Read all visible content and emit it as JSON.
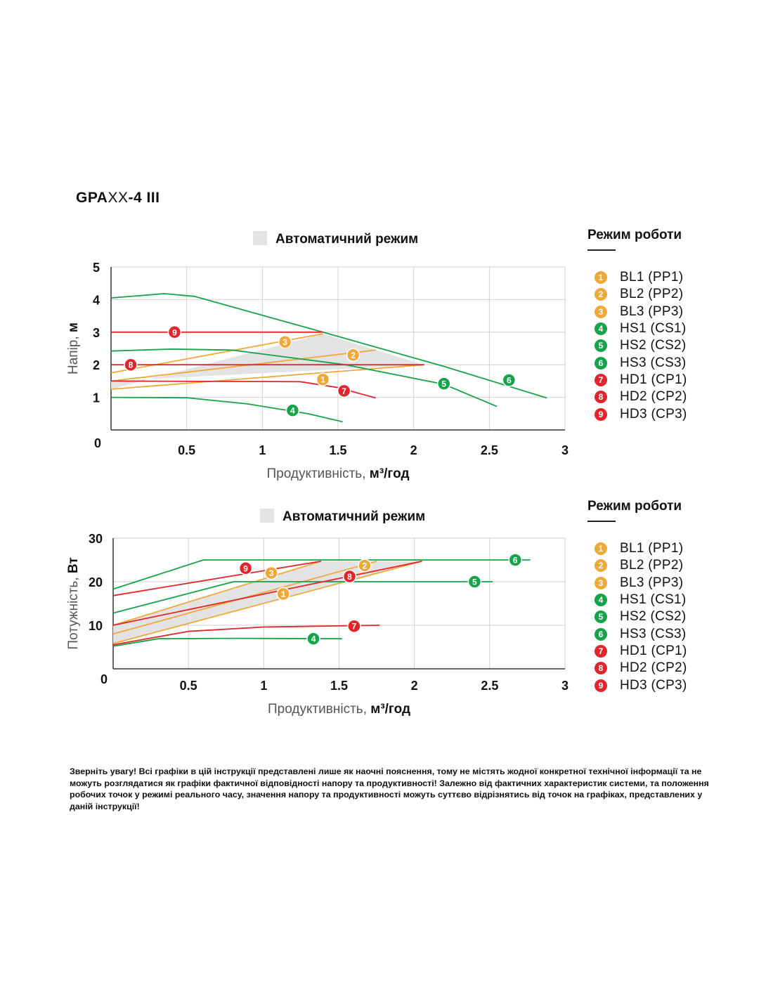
{
  "title": {
    "bold": "GPA",
    "light": "XX",
    "rest": "-4 III"
  },
  "colors": {
    "orange": "#efa93a",
    "green": "#16a34a",
    "red": "#e0262c",
    "auto_fill": "#e3e3e3",
    "grid": "#cfcfcf"
  },
  "legend": {
    "title": "Режим роботи",
    "items": [
      {
        "num": "1",
        "label": "BL1 (PP1)",
        "color": "#efa93a"
      },
      {
        "num": "2",
        "label": "BL2 (PP2)",
        "color": "#efa93a"
      },
      {
        "num": "3",
        "label": "BL3 (PP3)",
        "color": "#efa93a"
      },
      {
        "num": "4",
        "label": "HS1 (CS1)",
        "color": "#16a34a"
      },
      {
        "num": "5",
        "label": "HS2 (CS2)",
        "color": "#16a34a"
      },
      {
        "num": "6",
        "label": "HS3 (CS3)",
        "color": "#16a34a"
      },
      {
        "num": "7",
        "label": "HD1 (CP1)",
        "color": "#e0262c"
      },
      {
        "num": "8",
        "label": "HD2 (CP2)",
        "color": "#e0262c"
      },
      {
        "num": "9",
        "label": "HD3 (CP3)",
        "color": "#e0262c"
      }
    ]
  },
  "chart_data": [
    {
      "type": "line",
      "legend_label": "Автоматичний режим",
      "ylabel_main": "Напір, ",
      "ylabel_unit": "м",
      "xlabel_main": "Продуктивність, ",
      "xlabel_unit": "м³/год",
      "xlim": [
        0,
        3
      ],
      "ylim": [
        0,
        5
      ],
      "xticks": [
        "0.5",
        "1",
        "1.5",
        "2",
        "2.5",
        "3"
      ],
      "yticks": [
        "1",
        "2",
        "3",
        "4",
        "5"
      ],
      "origin_label": "0",
      "grid": true,
      "auto_region": [
        [
          0,
          1.5
        ],
        [
          0,
          1.25
        ],
        [
          1.4,
          2.95
        ],
        [
          2.07,
          2.0
        ]
      ],
      "series": [
        {
          "id": "1",
          "color": "#efa93a",
          "points": [
            [
              0,
              1.25
            ],
            [
              2.07,
              2.0
            ]
          ],
          "marker": [
            1.4,
            1.55
          ]
        },
        {
          "id": "2",
          "color": "#efa93a",
          "points": [
            [
              0,
              1.5
            ],
            [
              1.75,
              2.45
            ]
          ],
          "marker": [
            1.6,
            2.3
          ]
        },
        {
          "id": "3",
          "color": "#efa93a",
          "points": [
            [
              0,
              1.75
            ],
            [
              1.4,
              2.95
            ]
          ],
          "marker": [
            1.15,
            2.7
          ]
        },
        {
          "id": "4",
          "color": "#16a34a",
          "points": [
            [
              0,
              1.0
            ],
            [
              0.5,
              0.99
            ],
            [
              0.9,
              0.8
            ],
            [
              1.3,
              0.5
            ],
            [
              1.53,
              0.25
            ]
          ],
          "marker": [
            1.2,
            0.6
          ]
        },
        {
          "id": "5",
          "color": "#16a34a",
          "points": [
            [
              0,
              2.42
            ],
            [
              0.4,
              2.48
            ],
            [
              0.8,
              2.45
            ],
            [
              1.55,
              2.0
            ],
            [
              2.2,
              1.4
            ],
            [
              2.55,
              0.72
            ]
          ],
          "marker": [
            2.2,
            1.42
          ]
        },
        {
          "id": "6",
          "color": "#16a34a",
          "points": [
            [
              0,
              4.05
            ],
            [
              0.35,
              4.18
            ],
            [
              0.55,
              4.1
            ],
            [
              1.4,
              3.0
            ],
            [
              2.2,
              1.95
            ],
            [
              2.88,
              0.98
            ]
          ],
          "marker": [
            2.63,
            1.53
          ]
        },
        {
          "id": "7",
          "color": "#e0262c",
          "points": [
            [
              0,
              1.5
            ],
            [
              1.25,
              1.48
            ],
            [
              1.5,
              1.3
            ],
            [
              1.75,
              0.98
            ]
          ],
          "marker": [
            1.54,
            1.2
          ]
        },
        {
          "id": "8",
          "color": "#e0262c",
          "points": [
            [
              0,
              2.0
            ],
            [
              2.07,
              2.0
            ]
          ],
          "marker": [
            0.13,
            2.0
          ]
        },
        {
          "id": "9",
          "color": "#e0262c",
          "points": [
            [
              0,
              3.0
            ],
            [
              1.4,
              3.0
            ]
          ],
          "marker": [
            0.42,
            3.0
          ]
        }
      ]
    },
    {
      "type": "line",
      "legend_label": "Автоматичний режим",
      "ylabel_main": "Потужність, ",
      "ylabel_unit": "Вт",
      "xlabel_main": "Продуктивність, ",
      "xlabel_unit": "м³/год",
      "xlim": [
        0,
        3
      ],
      "ylim": [
        0,
        30
      ],
      "xticks": [
        "0.5",
        "1",
        "1.5",
        "2",
        "2.5",
        "3"
      ],
      "yticks": [
        "10",
        "20",
        "30"
      ],
      "origin_label": "0",
      "grid": true,
      "auto_region": [
        [
          0,
          10.0
        ],
        [
          0,
          5.8
        ],
        [
          2.05,
          24.7
        ],
        [
          1.38,
          24.7
        ]
      ],
      "series": [
        {
          "id": "1",
          "color": "#efa93a",
          "points": [
            [
              0,
              5.8
            ],
            [
              2.05,
              24.7
            ]
          ],
          "marker": [
            1.13,
            17.2
          ]
        },
        {
          "id": "2",
          "color": "#efa93a",
          "points": [
            [
              0,
              8.0
            ],
            [
              1.75,
              24.7
            ]
          ],
          "marker": [
            1.67,
            23.7
          ]
        },
        {
          "id": "3",
          "color": "#efa93a",
          "points": [
            [
              0,
              10.0
            ],
            [
              1.38,
              24.7
            ]
          ],
          "marker": [
            1.05,
            22.0
          ]
        },
        {
          "id": "4",
          "color": "#16a34a",
          "points": [
            [
              0,
              5.2
            ],
            [
              0.3,
              6.9
            ],
            [
              0.8,
              7.0
            ],
            [
              1.52,
              6.9
            ]
          ],
          "marker": [
            1.33,
            6.9
          ]
        },
        {
          "id": "5",
          "color": "#16a34a",
          "points": [
            [
              0,
              12.8
            ],
            [
              0.8,
              20.0
            ],
            [
              2.52,
              20.0
            ]
          ],
          "marker": [
            2.4,
            20.0
          ]
        },
        {
          "id": "6",
          "color": "#16a34a",
          "points": [
            [
              0,
              18.3
            ],
            [
              0.6,
              25.0
            ],
            [
              2.77,
              25.0
            ]
          ],
          "marker": [
            2.67,
            25.0
          ]
        },
        {
          "id": "7",
          "color": "#e0262c",
          "points": [
            [
              0,
              5.5
            ],
            [
              0.5,
              8.6
            ],
            [
              1.0,
              9.6
            ],
            [
              1.77,
              10.0
            ]
          ],
          "marker": [
            1.6,
            9.8
          ]
        },
        {
          "id": "8",
          "color": "#e0262c",
          "points": [
            [
              0,
              10.0
            ],
            [
              2.05,
              24.7
            ]
          ],
          "marker": [
            1.57,
            21.2
          ]
        },
        {
          "id": "9",
          "color": "#e0262c",
          "points": [
            [
              0,
              16.8
            ],
            [
              1.38,
              24.7
            ]
          ],
          "marker": [
            0.88,
            23.1
          ]
        }
      ]
    }
  ],
  "note": "Зверніть увагу! Всі графіки в цій інструкції представлені лише як наочні пояснення, тому не містять жодної конкретної технічної інформації та не можуть розглядатися як графіки фактичної відповідності напору та продуктивності! Залежно від фактичних характеристик системи, та положення робочих точок у режимі реального часу, значення напору та продуктивності можуть суттєво відрізнятись від точок на графіках, представлених у даній інструкції!"
}
